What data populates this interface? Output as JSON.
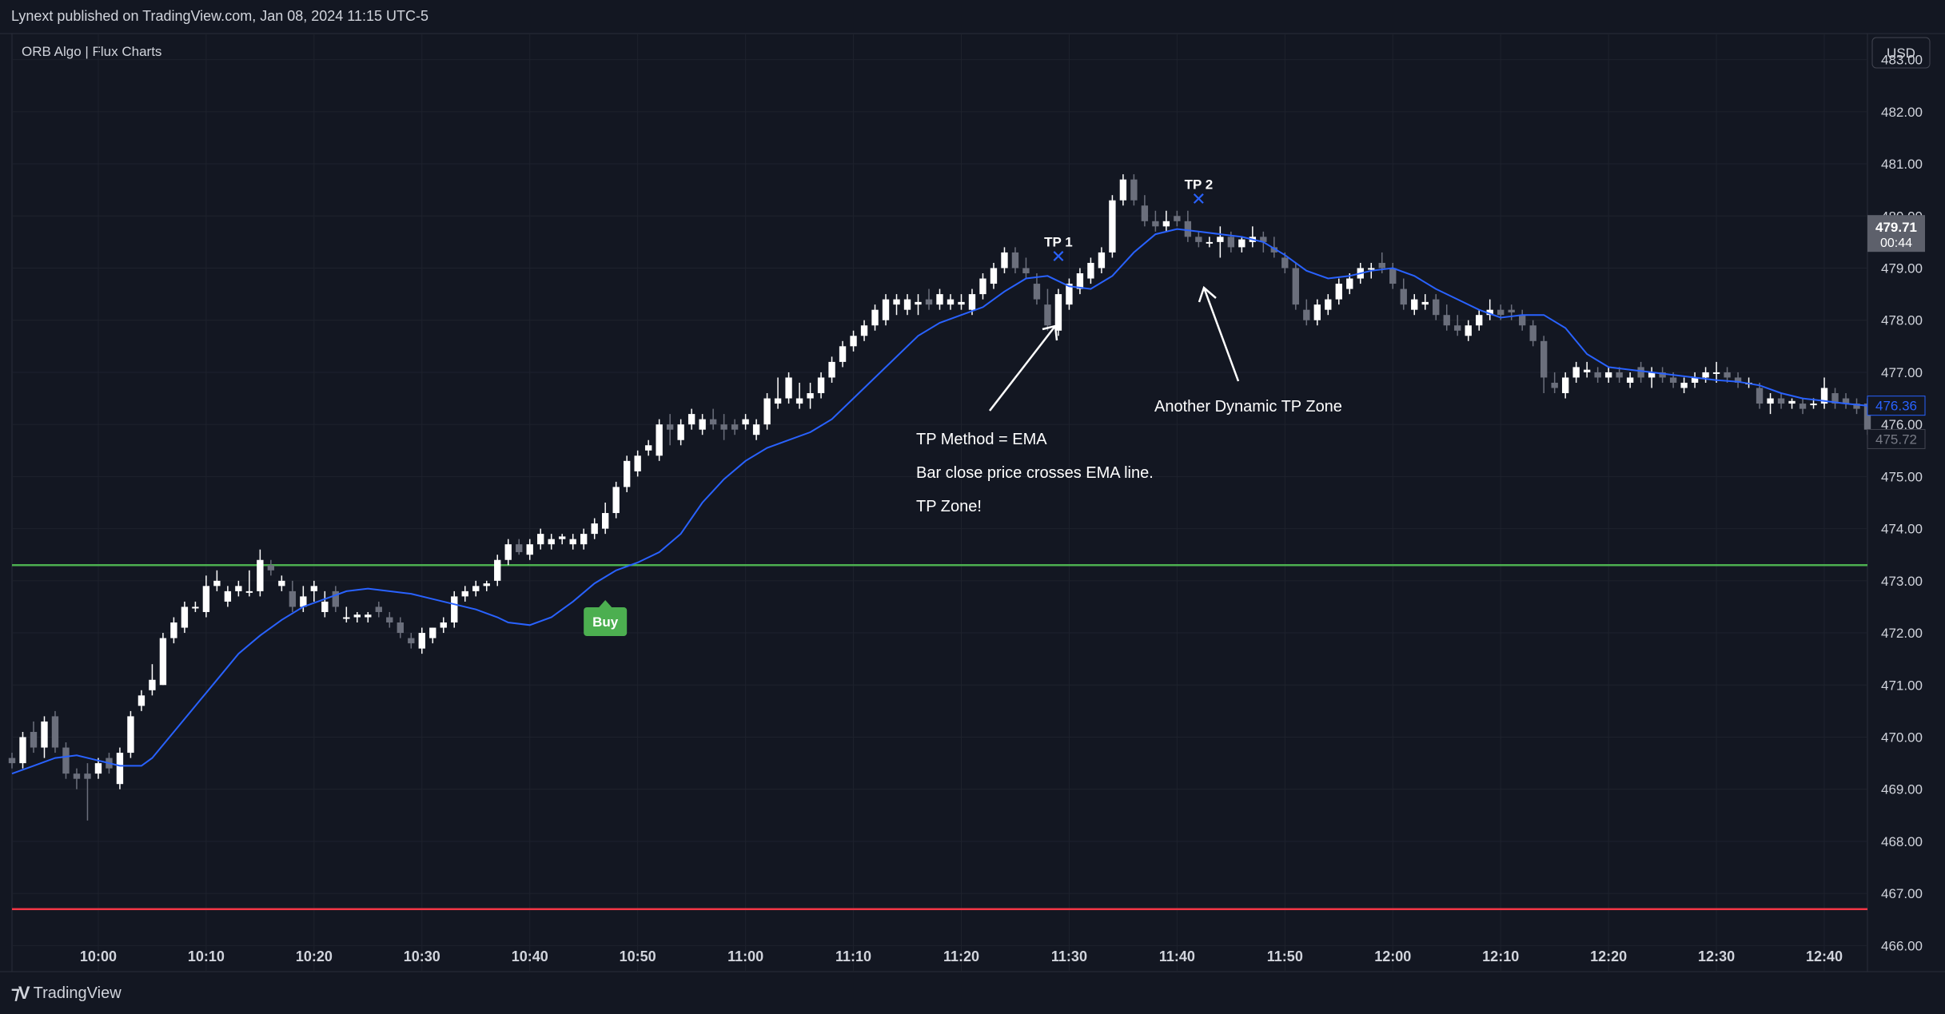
{
  "header": {
    "published": "Lynext published on TradingView.com, Jan 08, 2024 11:15 UTC-5",
    "indicator": "ORB Algo | Flux Charts",
    "currency": "USD"
  },
  "footer": {
    "brand": "TradingView"
  },
  "colors": {
    "background": "#131722",
    "grid": "#1e222d",
    "up": "#ffffff",
    "down": "#6b6f7c",
    "ema": "#2962ff",
    "orb_high": "#4caf50",
    "orb_low": "#f23645",
    "buy": "#4caf50",
    "tp_marker": "#2962ff",
    "text": "#d1d4dc"
  },
  "chart_data": {
    "type": "candlestick",
    "ylim": [
      465.5,
      483.5
    ],
    "xlim_minutes_from_10_00": [
      -8,
      164
    ],
    "y_ticks": [
      "483.00",
      "482.00",
      "481.00",
      "480.00",
      "479.00",
      "478.00",
      "477.00",
      "476.00",
      "475.00",
      "474.00",
      "473.00",
      "472.00",
      "471.00",
      "470.00",
      "469.00",
      "468.00",
      "467.00",
      "466.00"
    ],
    "x_ticks": [
      "10:00",
      "10:10",
      "10:20",
      "10:30",
      "10:40",
      "10:50",
      "11:00",
      "11:10",
      "11:20",
      "11:30",
      "11:40",
      "11:50",
      "12:00",
      "12:10",
      "12:20",
      "12:30",
      "12:40"
    ],
    "orb_high": 473.3,
    "orb_low": 466.7,
    "price_labels": [
      {
        "value": "479.71",
        "sub": "00:44",
        "price": 479.71,
        "style": "current"
      },
      {
        "value": "476.36",
        "price": 476.36,
        "style": "ema"
      },
      {
        "value": "475.72",
        "price": 475.72,
        "style": "last"
      }
    ],
    "candles": [
      [
        469.6,
        469.7,
        469.4,
        469.5
      ],
      [
        469.5,
        470.1,
        469.4,
        470.0
      ],
      [
        470.1,
        470.3,
        469.7,
        469.8
      ],
      [
        469.8,
        470.4,
        469.6,
        470.3
      ],
      [
        470.4,
        470.5,
        469.7,
        469.8
      ],
      [
        469.8,
        469.9,
        469.2,
        469.3
      ],
      [
        469.3,
        469.4,
        469.0,
        469.2
      ],
      [
        469.3,
        469.5,
        468.4,
        469.2
      ],
      [
        469.3,
        469.6,
        469.2,
        469.5
      ],
      [
        469.6,
        469.7,
        469.3,
        469.4
      ],
      [
        469.1,
        469.8,
        469.0,
        469.7
      ],
      [
        469.7,
        470.5,
        469.6,
        470.4
      ],
      [
        470.6,
        470.9,
        470.5,
        470.8
      ],
      [
        470.9,
        471.4,
        470.8,
        471.1
      ],
      [
        471.0,
        472.0,
        471.0,
        471.9
      ],
      [
        471.9,
        472.3,
        471.8,
        472.2
      ],
      [
        472.1,
        472.6,
        472.0,
        472.5
      ],
      [
        472.5,
        472.6,
        472.4,
        472.5
      ],
      [
        472.4,
        473.1,
        472.3,
        472.9
      ],
      [
        472.9,
        473.2,
        472.8,
        473.0
      ],
      [
        472.6,
        472.9,
        472.5,
        472.8
      ],
      [
        472.8,
        473.0,
        472.7,
        472.9
      ],
      [
        472.8,
        473.2,
        472.7,
        472.8
      ],
      [
        472.8,
        473.6,
        472.7,
        473.4
      ],
      [
        473.3,
        473.4,
        473.1,
        473.2
      ],
      [
        472.9,
        473.1,
        472.8,
        473.0
      ],
      [
        472.8,
        473.0,
        472.4,
        472.5
      ],
      [
        472.5,
        472.9,
        472.4,
        472.7
      ],
      [
        472.8,
        473.0,
        472.6,
        472.9
      ],
      [
        472.4,
        472.8,
        472.3,
        472.6
      ],
      [
        472.8,
        472.9,
        472.4,
        472.5
      ],
      [
        472.3,
        472.5,
        472.2,
        472.3
      ],
      [
        472.3,
        472.4,
        472.2,
        472.35
      ],
      [
        472.3,
        472.4,
        472.2,
        472.35
      ],
      [
        472.5,
        472.6,
        472.3,
        472.4
      ],
      [
        472.3,
        472.4,
        472.1,
        472.2
      ],
      [
        472.2,
        472.3,
        471.9,
        472.0
      ],
      [
        471.9,
        472.0,
        471.7,
        471.8
      ],
      [
        471.7,
        472.1,
        471.6,
        472.0
      ],
      [
        471.9,
        472.1,
        471.8,
        472.1
      ],
      [
        472.1,
        472.3,
        472.0,
        472.2
      ],
      [
        472.2,
        472.8,
        472.1,
        472.7
      ],
      [
        472.7,
        472.9,
        472.6,
        472.8
      ],
      [
        472.8,
        473.0,
        472.7,
        472.9
      ],
      [
        472.9,
        473.0,
        472.8,
        472.95
      ],
      [
        473.0,
        473.5,
        472.9,
        473.4
      ],
      [
        473.4,
        473.8,
        473.3,
        473.7
      ],
      [
        473.7,
        473.8,
        473.5,
        473.55
      ],
      [
        473.5,
        473.8,
        473.4,
        473.7
      ],
      [
        473.7,
        474.0,
        473.6,
        473.9
      ],
      [
        473.7,
        473.9,
        473.6,
        473.8
      ],
      [
        473.8,
        473.9,
        473.7,
        473.85
      ],
      [
        473.7,
        473.9,
        473.6,
        473.8
      ],
      [
        473.7,
        474.0,
        473.6,
        473.9
      ],
      [
        473.9,
        474.2,
        473.8,
        474.1
      ],
      [
        474.0,
        474.5,
        473.9,
        474.3
      ],
      [
        474.3,
        474.9,
        474.2,
        474.8
      ],
      [
        474.8,
        475.4,
        474.7,
        475.3
      ],
      [
        475.1,
        475.5,
        475.0,
        475.4
      ],
      [
        475.5,
        475.7,
        475.4,
        475.6
      ],
      [
        475.4,
        476.1,
        475.3,
        476.0
      ],
      [
        476.0,
        476.2,
        475.6,
        475.9
      ],
      [
        475.7,
        476.1,
        475.6,
        476.0
      ],
      [
        476.0,
        476.3,
        475.9,
        476.2
      ],
      [
        475.9,
        476.2,
        475.8,
        476.1
      ],
      [
        476.1,
        476.3,
        475.9,
        476.0
      ],
      [
        476.0,
        476.2,
        475.7,
        475.9
      ],
      [
        476.0,
        476.1,
        475.8,
        475.9
      ],
      [
        476.0,
        476.2,
        475.9,
        476.1
      ],
      [
        475.8,
        476.1,
        475.7,
        476.0
      ],
      [
        476.0,
        476.6,
        475.9,
        476.5
      ],
      [
        476.4,
        476.9,
        476.3,
        476.5
      ],
      [
        476.5,
        477.0,
        476.4,
        476.9
      ],
      [
        476.4,
        476.8,
        476.3,
        476.5
      ],
      [
        476.5,
        476.8,
        476.3,
        476.6
      ],
      [
        476.6,
        477.0,
        476.5,
        476.9
      ],
      [
        476.9,
        477.3,
        476.8,
        477.2
      ],
      [
        477.2,
        477.6,
        477.1,
        477.5
      ],
      [
        477.5,
        477.8,
        477.4,
        477.7
      ],
      [
        477.7,
        478.0,
        477.6,
        477.9
      ],
      [
        477.9,
        478.3,
        477.8,
        478.2
      ],
      [
        478.0,
        478.5,
        477.9,
        478.4
      ],
      [
        478.3,
        478.5,
        478.1,
        478.4
      ],
      [
        478.2,
        478.5,
        478.1,
        478.4
      ],
      [
        478.3,
        478.5,
        478.1,
        478.35
      ],
      [
        478.4,
        478.6,
        478.2,
        478.3
      ],
      [
        478.3,
        478.6,
        478.2,
        478.5
      ],
      [
        478.3,
        478.5,
        478.2,
        478.4
      ],
      [
        478.3,
        478.5,
        478.2,
        478.35
      ],
      [
        478.2,
        478.6,
        478.1,
        478.5
      ],
      [
        478.5,
        478.9,
        478.4,
        478.8
      ],
      [
        478.7,
        479.1,
        478.6,
        479.0
      ],
      [
        479.0,
        479.4,
        478.9,
        479.3
      ],
      [
        479.3,
        479.4,
        478.9,
        479.0
      ],
      [
        479.0,
        479.2,
        478.8,
        478.9
      ],
      [
        478.7,
        478.9,
        478.3,
        478.4
      ],
      [
        478.3,
        478.6,
        477.8,
        477.9
      ],
      [
        477.8,
        478.6,
        477.7,
        478.5
      ],
      [
        478.3,
        478.8,
        478.2,
        478.7
      ],
      [
        478.6,
        479.0,
        478.5,
        478.9
      ],
      [
        478.8,
        479.2,
        478.7,
        479.1
      ],
      [
        479.0,
        479.4,
        478.9,
        479.3
      ],
      [
        479.3,
        480.4,
        479.2,
        480.3
      ],
      [
        480.3,
        480.8,
        480.2,
        480.7
      ],
      [
        480.7,
        480.8,
        480.2,
        480.3
      ],
      [
        480.2,
        480.4,
        479.8,
        479.9
      ],
      [
        479.9,
        480.1,
        479.7,
        479.8
      ],
      [
        479.8,
        480.1,
        479.7,
        479.9
      ],
      [
        480.0,
        480.1,
        479.8,
        479.9
      ],
      [
        479.9,
        480.1,
        479.5,
        479.6
      ],
      [
        479.6,
        479.7,
        479.4,
        479.5
      ],
      [
        479.5,
        479.6,
        479.4,
        479.5
      ],
      [
        479.5,
        479.8,
        479.2,
        479.6
      ],
      [
        479.6,
        479.7,
        479.3,
        479.4
      ],
      [
        479.4,
        479.6,
        479.3,
        479.55
      ],
      [
        479.5,
        479.8,
        479.4,
        479.6
      ],
      [
        479.6,
        479.7,
        479.3,
        479.5
      ],
      [
        479.4,
        479.6,
        479.2,
        479.3
      ],
      [
        479.2,
        479.3,
        478.9,
        479.0
      ],
      [
        479.0,
        479.1,
        478.2,
        478.3
      ],
      [
        478.2,
        478.4,
        477.9,
        478.0
      ],
      [
        478.0,
        478.4,
        477.9,
        478.3
      ],
      [
        478.2,
        478.5,
        478.1,
        478.4
      ],
      [
        478.4,
        478.8,
        478.3,
        478.7
      ],
      [
        478.6,
        478.9,
        478.5,
        478.8
      ],
      [
        478.8,
        479.1,
        478.7,
        479.0
      ],
      [
        479.0,
        479.1,
        478.8,
        479.0
      ],
      [
        479.1,
        479.3,
        478.9,
        479.0
      ],
      [
        479.0,
        479.1,
        478.6,
        478.7
      ],
      [
        478.6,
        478.8,
        478.2,
        478.3
      ],
      [
        478.2,
        478.5,
        478.1,
        478.4
      ],
      [
        478.3,
        478.5,
        478.2,
        478.35
      ],
      [
        478.4,
        478.5,
        478.0,
        478.1
      ],
      [
        478.1,
        478.3,
        477.8,
        477.9
      ],
      [
        477.9,
        478.1,
        477.7,
        477.8
      ],
      [
        477.7,
        478.0,
        477.6,
        477.9
      ],
      [
        477.9,
        478.2,
        477.8,
        478.1
      ],
      [
        478.1,
        478.4,
        478.0,
        478.2
      ],
      [
        478.2,
        478.3,
        478.0,
        478.1
      ],
      [
        478.2,
        478.3,
        478.0,
        478.15
      ],
      [
        478.1,
        478.2,
        477.8,
        477.9
      ],
      [
        477.9,
        478.0,
        477.5,
        477.6
      ],
      [
        477.6,
        477.7,
        476.6,
        476.9
      ],
      [
        476.8,
        477.0,
        476.6,
        476.7
      ],
      [
        476.6,
        477.0,
        476.5,
        476.9
      ],
      [
        476.9,
        477.2,
        476.8,
        477.1
      ],
      [
        477.0,
        477.2,
        476.9,
        477.05
      ],
      [
        477.0,
        477.1,
        476.8,
        476.9
      ],
      [
        476.9,
        477.1,
        476.8,
        477.0
      ],
      [
        477.0,
        477.1,
        476.8,
        476.9
      ],
      [
        476.8,
        477.0,
        476.7,
        476.9
      ],
      [
        477.1,
        477.2,
        476.8,
        476.9
      ],
      [
        476.9,
        477.1,
        476.7,
        477.0
      ],
      [
        477.0,
        477.1,
        476.8,
        476.9
      ],
      [
        476.9,
        477.0,
        476.7,
        476.8
      ],
      [
        476.7,
        476.9,
        476.6,
        476.8
      ],
      [
        476.8,
        477.0,
        476.7,
        476.9
      ],
      [
        476.9,
        477.1,
        476.8,
        477.0
      ],
      [
        477.0,
        477.2,
        476.8,
        477.0
      ],
      [
        477.0,
        477.1,
        476.8,
        476.9
      ],
      [
        476.9,
        477.0,
        476.7,
        476.8
      ],
      [
        476.8,
        476.9,
        476.7,
        476.8
      ],
      [
        476.7,
        476.8,
        476.3,
        476.4
      ],
      [
        476.4,
        476.6,
        476.2,
        476.5
      ],
      [
        476.5,
        476.6,
        476.3,
        476.4
      ],
      [
        476.4,
        476.5,
        476.3,
        476.45
      ],
      [
        476.4,
        476.5,
        476.2,
        476.3
      ],
      [
        476.4,
        476.5,
        476.3,
        476.4
      ],
      [
        476.4,
        476.9,
        476.3,
        476.7
      ],
      [
        476.6,
        476.7,
        476.3,
        476.4
      ],
      [
        476.5,
        476.6,
        476.3,
        476.4
      ],
      [
        476.4,
        476.5,
        476.2,
        476.3
      ],
      [
        476.4,
        476.5,
        475.8,
        475.9
      ],
      [
        475.8,
        475.9,
        475.7,
        475.72
      ]
    ],
    "ema": [
      [
        -8,
        469.3
      ],
      [
        -6,
        469.45
      ],
      [
        -4,
        469.6
      ],
      [
        -2,
        469.65
      ],
      [
        0,
        469.55
      ],
      [
        2,
        469.45
      ],
      [
        4,
        469.45
      ],
      [
        5,
        469.6
      ],
      [
        7,
        470.1
      ],
      [
        9,
        470.6
      ],
      [
        11,
        471.1
      ],
      [
        13,
        471.6
      ],
      [
        15,
        471.95
      ],
      [
        17,
        472.25
      ],
      [
        19,
        472.5
      ],
      [
        21,
        472.65
      ],
      [
        23,
        472.8
      ],
      [
        25,
        472.85
      ],
      [
        27,
        472.8
      ],
      [
        29,
        472.75
      ],
      [
        31,
        472.65
      ],
      [
        33,
        472.55
      ],
      [
        35,
        472.45
      ],
      [
        37,
        472.3
      ],
      [
        38,
        472.2
      ],
      [
        40,
        472.15
      ],
      [
        42,
        472.3
      ],
      [
        44,
        472.6
      ],
      [
        46,
        472.95
      ],
      [
        48,
        473.2
      ],
      [
        50,
        473.35
      ],
      [
        52,
        473.55
      ],
      [
        54,
        473.9
      ],
      [
        56,
        474.5
      ],
      [
        58,
        474.95
      ],
      [
        60,
        475.3
      ],
      [
        62,
        475.55
      ],
      [
        64,
        475.7
      ],
      [
        66,
        475.85
      ],
      [
        68,
        476.1
      ],
      [
        70,
        476.5
      ],
      [
        72,
        476.9
      ],
      [
        74,
        477.3
      ],
      [
        76,
        477.7
      ],
      [
        78,
        477.95
      ],
      [
        80,
        478.1
      ],
      [
        82,
        478.25
      ],
      [
        84,
        478.55
      ],
      [
        86,
        478.8
      ],
      [
        88,
        478.85
      ],
      [
        90,
        478.65
      ],
      [
        92,
        478.6
      ],
      [
        94,
        478.85
      ],
      [
        96,
        479.3
      ],
      [
        98,
        479.65
      ],
      [
        100,
        479.75
      ],
      [
        102,
        479.7
      ],
      [
        104,
        479.65
      ],
      [
        106,
        479.6
      ],
      [
        108,
        479.5
      ],
      [
        110,
        479.25
      ],
      [
        112,
        478.95
      ],
      [
        114,
        478.8
      ],
      [
        116,
        478.85
      ],
      [
        118,
        478.95
      ],
      [
        120,
        479.0
      ],
      [
        122,
        478.85
      ],
      [
        124,
        478.6
      ],
      [
        126,
        478.4
      ],
      [
        128,
        478.2
      ],
      [
        130,
        478.05
      ],
      [
        132,
        478.1
      ],
      [
        134,
        478.1
      ],
      [
        136,
        477.85
      ],
      [
        138,
        477.35
      ],
      [
        140,
        477.1
      ],
      [
        142,
        477.05
      ],
      [
        144,
        477.0
      ],
      [
        146,
        476.95
      ],
      [
        148,
        476.9
      ],
      [
        150,
        476.85
      ],
      [
        152,
        476.82
      ],
      [
        154,
        476.75
      ],
      [
        156,
        476.6
      ],
      [
        158,
        476.5
      ],
      [
        160,
        476.45
      ],
      [
        162,
        476.4
      ],
      [
        164,
        476.36
      ]
    ],
    "annotations": [
      {
        "label": "TP 1",
        "minute": 89,
        "price": 479.2,
        "kind": "tp"
      },
      {
        "label": "TP 2",
        "minute": 102,
        "price": 480.3,
        "kind": "tp"
      },
      {
        "label": "Buy",
        "minute": 47,
        "price": 473.0,
        "kind": "buy"
      }
    ],
    "texts": [
      "TP Method = EMA",
      "Bar close price crosses EMA line.",
      "TP Zone!",
      "Another Dynamic TP Zone"
    ]
  }
}
